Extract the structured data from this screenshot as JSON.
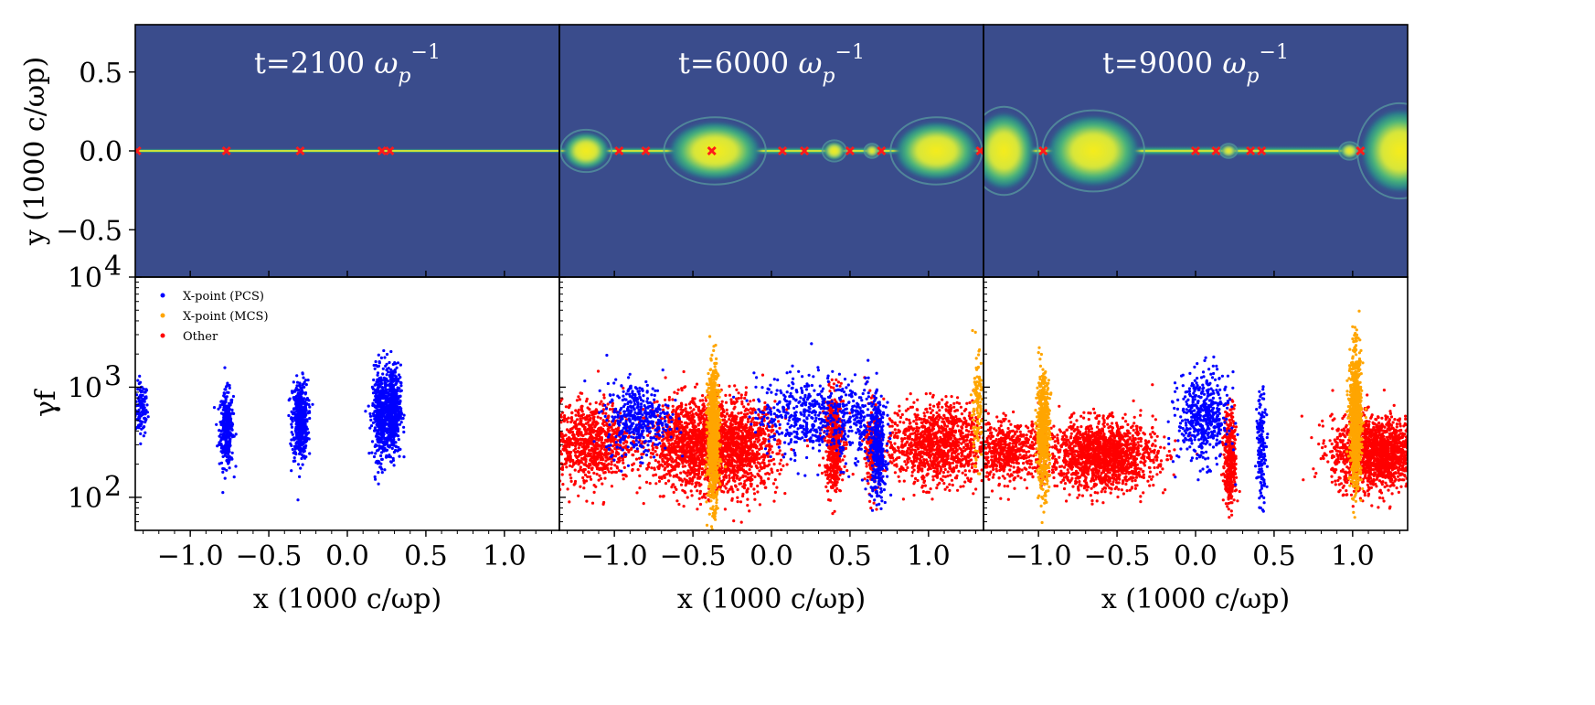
{
  "chart_data": {
    "type": "scatter",
    "description": "Top row: density maps; bottom row: particle Lorentz factor vs x, colored by acceleration site",
    "colors": {
      "map_background": "#3a4c8c",
      "map_mid": "#2a8c8a",
      "map_bright": "#f2e91e",
      "xpoint_marker": "#ff1a1a",
      "pcs": "#0000ff",
      "mcs": "#ffa500",
      "other": "#ff0000"
    },
    "shared": {
      "xlabel": "x (1000 c/ωp)",
      "ylabel_top": "y (1000 c/ωp)",
      "ylabel_bottom": "γf",
      "xlim": [
        -1.35,
        1.35
      ],
      "ylim_top": [
        -0.8,
        0.8
      ],
      "ylim_bottom_log10": [
        1.7,
        4.0
      ],
      "x_ticks": [
        -1.0,
        -0.5,
        0.0,
        0.5,
        1.0
      ],
      "x_tick_labels": [
        "−1.0",
        "−0.5",
        "0.0",
        "0.5",
        "1.0"
      ],
      "y_ticks_top": [
        0.5,
        0.0,
        -0.5
      ],
      "y_tick_labels_top": [
        "0.5",
        "0.0",
        "−0.5"
      ],
      "y_ticks_bottom_log10": [
        2,
        3,
        4
      ],
      "y_tick_labels_bottom": [
        "10",
        "10",
        "10"
      ],
      "y_tick_exponents_bottom": [
        "2",
        "3",
        "4"
      ]
    },
    "legend": {
      "position": "top-left",
      "entries": [
        {
          "label": "X-point (PCS)",
          "color_key": "pcs"
        },
        {
          "label": "X-point (MCS)",
          "color_key": "mcs"
        },
        {
          "label": "Other",
          "color_key": "other"
        }
      ]
    },
    "panels": [
      {
        "title_prefix": "t=2100 ",
        "title_symbol": "ω",
        "title_sub": "p",
        "title_sup": "−1",
        "xpoints": [
          -1.34,
          -0.77,
          -0.3,
          0.22,
          0.27
        ],
        "islands": [],
        "layer_thickness": 0.012,
        "clusters": [
          {
            "x": -1.31,
            "sx": 0.02,
            "logmu": 2.8,
            "logsd": 0.12,
            "n": 120,
            "cat": "pcs"
          },
          {
            "x": -0.77,
            "sx": 0.022,
            "logmu": 2.62,
            "logsd": 0.17,
            "n": 320,
            "cat": "pcs"
          },
          {
            "x": -0.3,
            "sx": 0.025,
            "logmu": 2.7,
            "logsd": 0.18,
            "n": 480,
            "cat": "pcs"
          },
          {
            "x": 0.21,
            "sx": 0.025,
            "logmu": 2.75,
            "logsd": 0.2,
            "n": 420,
            "cat": "pcs"
          },
          {
            "x": 0.29,
            "sx": 0.025,
            "logmu": 2.8,
            "logsd": 0.2,
            "n": 520,
            "cat": "pcs"
          }
        ]
      },
      {
        "title_prefix": "t=6000 ",
        "title_symbol": "ω",
        "title_sub": "p",
        "title_sup": "−1",
        "xpoints": [
          -0.97,
          -0.8,
          -0.38,
          0.07,
          0.21,
          0.5,
          0.7,
          1.33
        ],
        "islands": [
          {
            "x": -1.18,
            "rx": 0.15,
            "ry": 0.12
          },
          {
            "x": -0.36,
            "rx": 0.3,
            "ry": 0.19
          },
          {
            "x": 0.4,
            "rx": 0.07,
            "ry": 0.06
          },
          {
            "x": 0.64,
            "rx": 0.045,
            "ry": 0.04
          },
          {
            "x": 1.05,
            "rx": 0.27,
            "ry": 0.19
          }
        ],
        "layer_thickness": 0.02,
        "clusters": [
          {
            "x": -1.15,
            "sx": 0.13,
            "logmu": 2.5,
            "logsd": 0.18,
            "n": 900,
            "cat": "other"
          },
          {
            "x": -0.85,
            "sx": 0.1,
            "logmu": 2.72,
            "logsd": 0.16,
            "n": 420,
            "cat": "pcs"
          },
          {
            "x": -0.5,
            "sx": 0.14,
            "logmu": 2.48,
            "logsd": 0.2,
            "n": 1300,
            "cat": "other"
          },
          {
            "x": -0.2,
            "sx": 0.12,
            "logmu": 2.45,
            "logsd": 0.2,
            "n": 1000,
            "cat": "other"
          },
          {
            "x": -0.37,
            "sx": 0.018,
            "logmu": 2.55,
            "logsd": 0.3,
            "n": 900,
            "cat": "mcs"
          },
          {
            "x": 0.2,
            "sx": 0.15,
            "logmu": 2.75,
            "logsd": 0.18,
            "n": 450,
            "cat": "pcs"
          },
          {
            "x": 0.4,
            "sx": 0.03,
            "logmu": 2.5,
            "logsd": 0.22,
            "n": 500,
            "cat": "other"
          },
          {
            "x": 0.55,
            "sx": 0.08,
            "logmu": 2.7,
            "logsd": 0.2,
            "n": 220,
            "cat": "pcs"
          },
          {
            "x": 0.68,
            "sx": 0.025,
            "logmu": 2.4,
            "logsd": 0.22,
            "n": 300,
            "cat": "pcs"
          },
          {
            "x": 0.64,
            "sx": 0.02,
            "logmu": 2.45,
            "logsd": 0.2,
            "n": 200,
            "cat": "other"
          },
          {
            "x": 1.05,
            "sx": 0.16,
            "logmu": 2.48,
            "logsd": 0.18,
            "n": 1200,
            "cat": "other"
          },
          {
            "x": 1.31,
            "sx": 0.02,
            "logmu": 2.8,
            "logsd": 0.25,
            "n": 120,
            "cat": "mcs"
          }
        ]
      },
      {
        "title_prefix": "t=9000 ",
        "title_symbol": "ω",
        "title_sub": "p",
        "title_sup": "−1",
        "xpoints": [
          -0.97,
          0.0,
          0.13,
          0.35,
          0.42,
          1.05
        ],
        "islands": [
          {
            "x": -1.22,
            "rx": 0.2,
            "ry": 0.25
          },
          {
            "x": -0.65,
            "rx": 0.3,
            "ry": 0.23
          },
          {
            "x": 0.21,
            "rx": 0.05,
            "ry": 0.04
          },
          {
            "x": 0.98,
            "rx": 0.06,
            "ry": 0.05
          },
          {
            "x": 1.3,
            "rx": 0.25,
            "ry": 0.27
          }
        ],
        "layer_thickness": 0.025,
        "clusters": [
          {
            "x": -1.2,
            "sx": 0.12,
            "logmu": 2.42,
            "logsd": 0.13,
            "n": 600,
            "cat": "other"
          },
          {
            "x": -0.97,
            "sx": 0.02,
            "logmu": 2.6,
            "logsd": 0.25,
            "n": 600,
            "cat": "mcs"
          },
          {
            "x": -0.6,
            "sx": 0.17,
            "logmu": 2.38,
            "logsd": 0.15,
            "n": 1600,
            "cat": "other"
          },
          {
            "x": 0.05,
            "sx": 0.08,
            "logmu": 2.72,
            "logsd": 0.2,
            "n": 500,
            "cat": "pcs"
          },
          {
            "x": 0.22,
            "sx": 0.02,
            "logmu": 2.35,
            "logsd": 0.22,
            "n": 350,
            "cat": "other"
          },
          {
            "x": 0.42,
            "sx": 0.015,
            "logmu": 2.45,
            "logsd": 0.25,
            "n": 150,
            "cat": "pcs"
          },
          {
            "x": 1.15,
            "sx": 0.14,
            "logmu": 2.4,
            "logsd": 0.16,
            "n": 1600,
            "cat": "other"
          },
          {
            "x": 1.02,
            "sx": 0.018,
            "logmu": 2.7,
            "logsd": 0.3,
            "n": 1000,
            "cat": "mcs"
          }
        ]
      }
    ]
  }
}
